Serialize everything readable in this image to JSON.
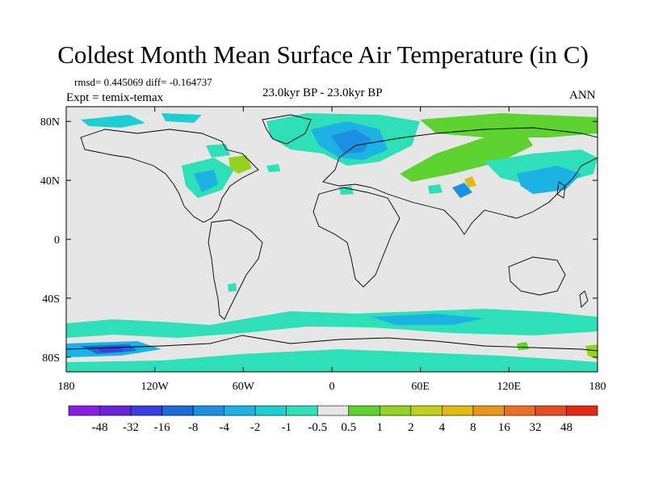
{
  "title": "Coldest Month Mean Surface Air Temperature (in C)",
  "stats": "rmsd= 0.445069 diff= -0.164737",
  "expt": "Expt = temix-temax",
  "subtitle": "23.0kyr BP - 23.0kyr BP",
  "season": "ANN",
  "axes": {
    "x_ticks": [
      "180",
      "120W",
      "60W",
      "0",
      "60E",
      "120E",
      "180"
    ],
    "y_ticks": [
      "80N",
      "40N",
      "0",
      "40S",
      "80S"
    ]
  },
  "colorbar": {
    "labels": [
      "-48",
      "-32",
      "-16",
      "-8",
      "-4",
      "-2",
      "-1",
      "-0.5",
      "0.5",
      "1",
      "2",
      "4",
      "8",
      "16",
      "32",
      "48"
    ],
    "colors": [
      "#8a1ee0",
      "#6a24d8",
      "#3a3ee0",
      "#1e6ad8",
      "#1c90e0",
      "#1cb2e4",
      "#1ecfd2",
      "#2ee0b8",
      "#e6e6e6",
      "#5ed22e",
      "#94d41e",
      "#c2d01a",
      "#e0bc12",
      "#e8961a",
      "#ea7022",
      "#e64c22",
      "#de2c14"
    ]
  },
  "colors": {
    "land_fill": "#e6e6e6",
    "coast": "#000000"
  }
}
